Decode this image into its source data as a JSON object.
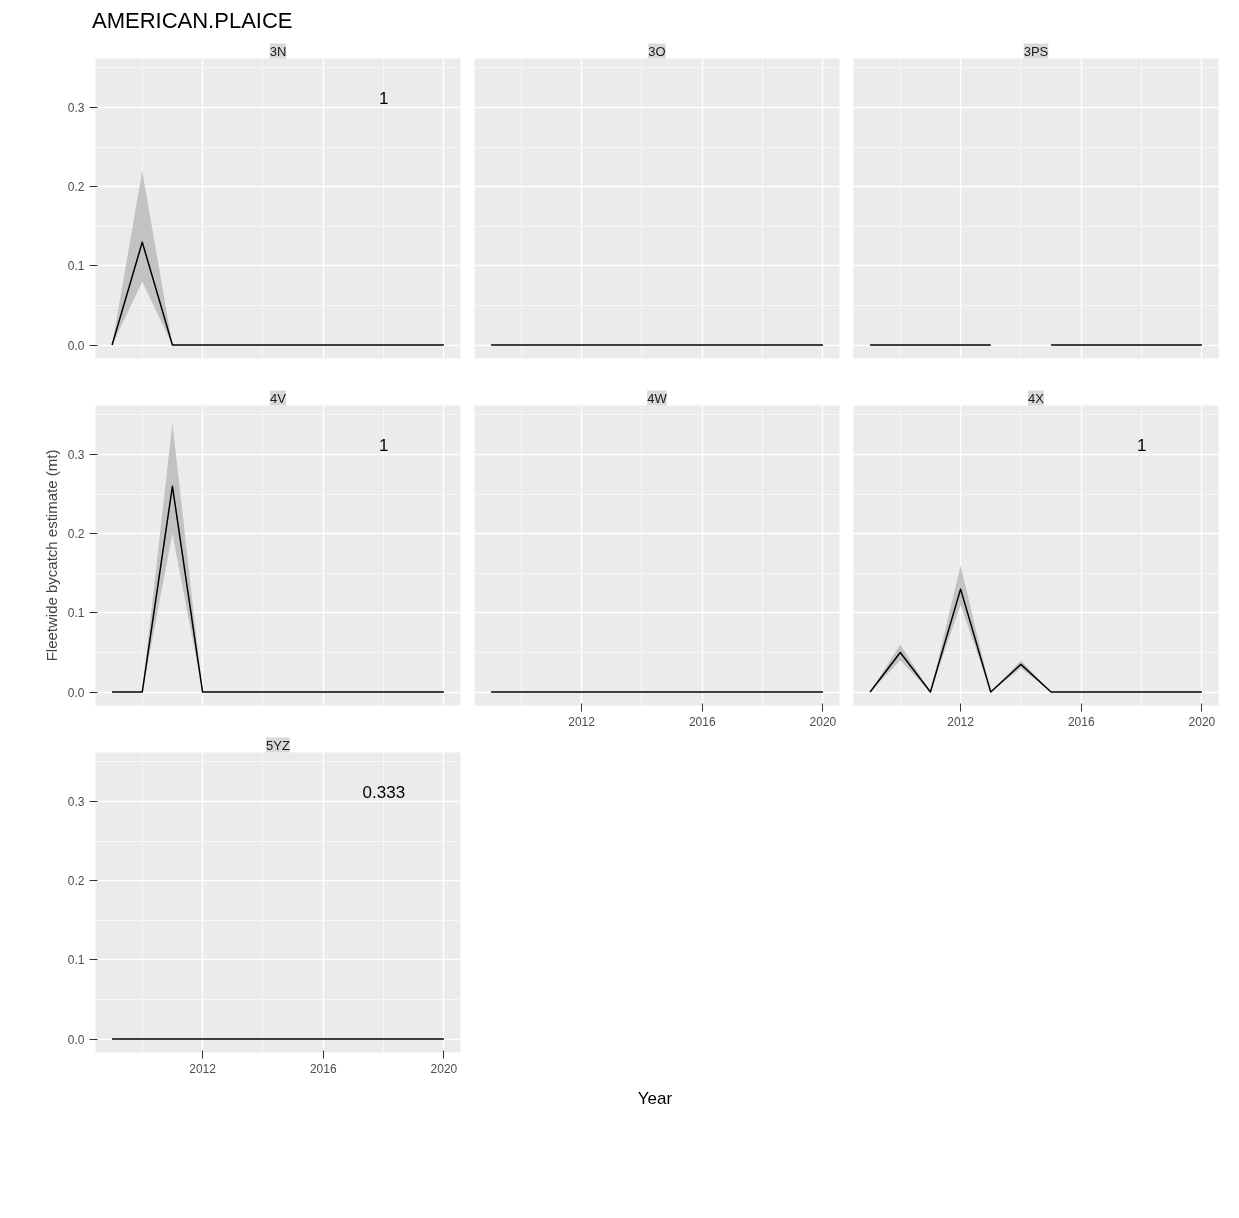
{
  "chart_data": [
    {
      "type": "line",
      "title": "3N",
      "annotations": [
        "AMERICAN.PLAICE",
        "1"
      ],
      "x": [
        2009,
        2010,
        2011,
        2012,
        2013,
        2014,
        2015,
        2016,
        2017,
        2018,
        2019,
        2020
      ],
      "series": [
        {
          "color": "#000000",
          "values": [
            0,
            0.13,
            0,
            0,
            0,
            0,
            0,
            0,
            0,
            0,
            0,
            0
          ],
          "lower": [
            0,
            0.08,
            0,
            0,
            0,
            0,
            0,
            0,
            0,
            0,
            0,
            0
          ],
          "upper": [
            0,
            0.22,
            0,
            0,
            0,
            0,
            0,
            0,
            0,
            0,
            0,
            0
          ]
        }
      ],
      "xlim": [
        2008.45,
        2020.55
      ],
      "ylim": [
        -0.017,
        0.362
      ],
      "xticks": [
        2012,
        2016,
        2020
      ],
      "yticks": [
        {
          "value": 0,
          "label": "0.0"
        },
        {
          "value": 0.1,
          "label": "0.1"
        },
        {
          "value": 0.2,
          "label": "0.2"
        },
        {
          "value": 0.3,
          "label": "0.3"
        }
      ],
      "grid": true,
      "tick_labels": "y"
    },
    {
      "type": "line",
      "title": "3O",
      "x": [
        2009,
        2010,
        2011,
        2012,
        2013,
        2014,
        2015,
        2016,
        2017,
        2018,
        2019,
        2020
      ],
      "series": [
        {
          "color": "#000000",
          "values": [
            0,
            0,
            0,
            0,
            0,
            0,
            0,
            0,
            0,
            0,
            0,
            0
          ]
        }
      ],
      "xlim": [
        2008.45,
        2020.55
      ],
      "ylim": [
        -0.017,
        0.362
      ],
      "xticks": [
        2012,
        2016,
        2020
      ],
      "yticks": [
        0,
        0.1,
        0.2,
        0.3
      ],
      "grid": true,
      "tick_labels": false
    },
    {
      "type": "line",
      "title": "3PS",
      "x": [
        2009,
        2010,
        2011,
        2012,
        2013,
        2014,
        2015,
        2016,
        2017,
        2018,
        2019,
        2020
      ],
      "series": [
        {
          "color": "#000000",
          "values": [
            0,
            0,
            0,
            0,
            0,
            null,
            0,
            0,
            0,
            0,
            0,
            0
          ]
        }
      ],
      "xlim": [
        2008.45,
        2020.55
      ],
      "ylim": [
        -0.017,
        0.362
      ],
      "xticks": [
        2012,
        2016,
        2020
      ],
      "yticks": [
        0,
        0.1,
        0.2,
        0.3
      ],
      "grid": true,
      "tick_labels": false
    },
    {
      "type": "line",
      "title": "4V",
      "ylabel": "Fleetwide bycatch estimate (mt)",
      "annotations": [
        "1"
      ],
      "x": [
        2009,
        2010,
        2011,
        2012,
        2013,
        2014,
        2015,
        2016,
        2017,
        2018,
        2019,
        2020
      ],
      "series": [
        {
          "color": "#000000",
          "values": [
            0,
            0,
            0.26,
            0,
            0,
            0,
            0,
            0,
            0,
            0,
            0,
            0
          ],
          "lower": [
            0,
            0,
            0.2,
            0,
            0,
            0,
            0,
            0,
            0,
            0,
            0,
            0
          ],
          "upper": [
            0,
            0,
            0.34,
            0,
            0,
            0,
            0,
            0,
            0,
            0,
            0,
            0
          ]
        }
      ],
      "xlim": [
        2008.45,
        2020.55
      ],
      "ylim": [
        -0.017,
        0.362
      ],
      "xticks": [
        2012,
        2016,
        2020
      ],
      "yticks": [
        {
          "value": 0,
          "label": "0.0"
        },
        {
          "value": 0.1,
          "label": "0.1"
        },
        {
          "value": 0.2,
          "label": "0.2"
        },
        {
          "value": 0.3,
          "label": "0.3"
        }
      ],
      "grid": true,
      "tick_labels": "y"
    },
    {
      "type": "line",
      "title": "4W",
      "xlabel": "Year",
      "x": [
        2009,
        2010,
        2011,
        2012,
        2013,
        2014,
        2015,
        2016,
        2017,
        2018,
        2019,
        2020
      ],
      "series": [
        {
          "color": "#000000",
          "values": [
            0,
            0,
            0,
            0,
            0,
            0,
            0,
            0,
            0,
            0,
            0,
            0
          ]
        }
      ],
      "xlim": [
        2008.45,
        2020.55
      ],
      "ylim": [
        -0.017,
        0.362
      ],
      "xticks": [
        2012,
        2016,
        2020
      ],
      "yticks": [
        0,
        0.1,
        0.2,
        0.3
      ],
      "grid": true,
      "tick_labels": "x"
    },
    {
      "type": "line",
      "title": "4X",
      "annotations": [
        "1"
      ],
      "x": [
        2009,
        2010,
        2011,
        2012,
        2013,
        2014,
        2015,
        2016,
        2017,
        2018,
        2019,
        2020
      ],
      "series": [
        {
          "color": "#000000",
          "values": [
            0,
            0.05,
            0,
            0.13,
            0,
            0.035,
            0,
            0,
            0,
            0,
            0,
            0
          ],
          "lower": [
            0,
            0.04,
            0,
            0.11,
            0,
            0.03,
            0,
            0,
            0,
            0,
            0,
            0
          ],
          "upper": [
            0,
            0.06,
            0,
            0.16,
            0,
            0.04,
            0,
            0,
            0,
            0,
            0,
            0
          ]
        }
      ],
      "xlim": [
        2008.45,
        2020.55
      ],
      "ylim": [
        -0.017,
        0.362
      ],
      "xticks": [
        2012,
        2016,
        2020
      ],
      "yticks": [
        0,
        0.1,
        0.2,
        0.3
      ],
      "grid": true,
      "tick_labels": "x"
    },
    {
      "type": "line",
      "title": "5YZ",
      "annotations": [
        "0.333"
      ],
      "x": [
        2009,
        2010,
        2011,
        2012,
        2013,
        2014,
        2015,
        2016,
        2017,
        2018,
        2019,
        2020
      ],
      "series": [
        {
          "color": "#000000",
          "values": [
            0,
            0,
            0,
            0,
            0,
            0,
            0,
            0,
            0,
            0,
            0,
            0
          ]
        }
      ],
      "xlim": [
        2008.45,
        2020.55
      ],
      "ylim": [
        -0.017,
        0.362
      ],
      "xticks": [
        2012,
        2016,
        2020
      ],
      "yticks": [
        {
          "value": 0,
          "label": "0.0"
        },
        {
          "value": 0.1,
          "label": "0.1"
        },
        {
          "value": 0.2,
          "label": "0.2"
        },
        {
          "value": 0.3,
          "label": "0.3"
        }
      ],
      "grid": true
    }
  ]
}
